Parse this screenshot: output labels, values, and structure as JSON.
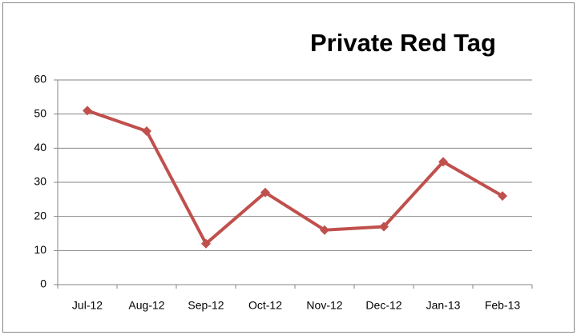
{
  "chart_data": {
    "type": "line",
    "title": "Private Red Tag",
    "categories": [
      "Jul-12",
      "Aug-12",
      "Sep-12",
      "Oct-12",
      "Nov-12",
      "Dec-12",
      "Jan-13",
      "Feb-13"
    ],
    "values": [
      51,
      45,
      12,
      27,
      16,
      17,
      36,
      26
    ],
    "color": "#c0504d",
    "ylim": [
      0,
      60
    ],
    "yticks": [
      0,
      10,
      20,
      30,
      40,
      50,
      60
    ],
    "grid": true
  }
}
